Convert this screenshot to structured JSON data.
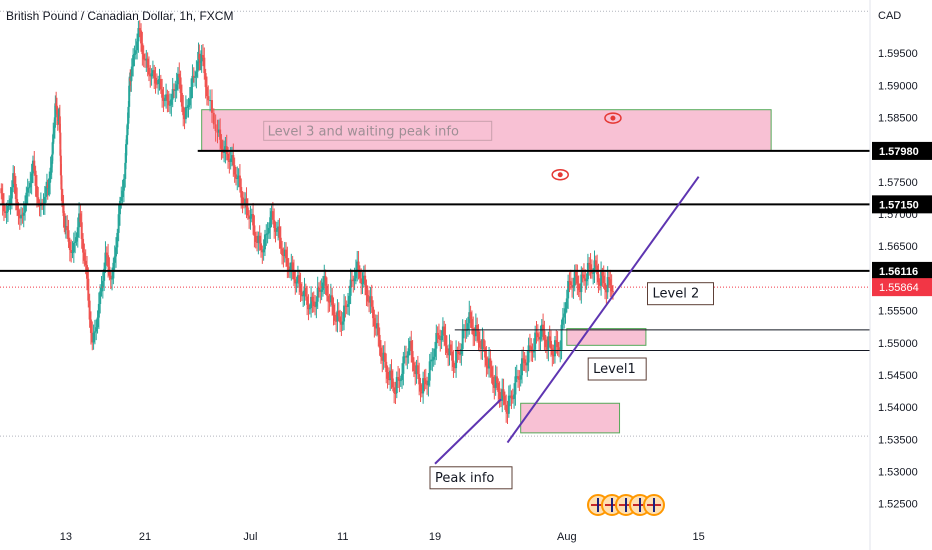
{
  "chart_data": {
    "type": "candlestick",
    "title": "British Pound / Canadian Dollar, 1h, FXCM",
    "currency": "CAD",
    "ylim": [
      1.522,
      1.602
    ],
    "y_ticks": [
      "1.59500",
      "1.59000",
      "1.58500",
      "1.57500",
      "1.57000",
      "1.56500",
      "1.55500",
      "1.55000",
      "1.54500",
      "1.54000",
      "1.53500",
      "1.53000",
      "1.52500"
    ],
    "y_tick_values": [
      1.595,
      1.59,
      1.585,
      1.575,
      1.57,
      1.565,
      1.555,
      1.55,
      1.545,
      1.54,
      1.535,
      1.53,
      1.525
    ],
    "x_ticks": [
      "13",
      "21",
      "Jul",
      "11",
      "19",
      "Aug",
      "15"
    ],
    "x_tick_positions": [
      0.0,
      6.0,
      14.0,
      21.0,
      28.0,
      38.0,
      48.0
    ],
    "last_bar_x": 38.0,
    "x_range": [
      -5.0,
      61.0
    ],
    "price_series": [
      [
        -5.0,
        1.574
      ],
      [
        -4.5,
        1.57
      ],
      [
        -4.0,
        1.576
      ],
      [
        -3.5,
        1.569
      ],
      [
        -3.0,
        1.573
      ],
      [
        -2.5,
        1.578
      ],
      [
        -2.0,
        1.571
      ],
      [
        -1.5,
        1.574
      ],
      [
        -1.2,
        1.576
      ],
      [
        -1.0,
        1.581
      ],
      [
        -0.8,
        1.587
      ],
      [
        -0.5,
        1.585
      ],
      [
        -0.3,
        1.572
      ],
      [
        0.0,
        1.568
      ],
      [
        0.5,
        1.564
      ],
      [
        1.0,
        1.57
      ],
      [
        1.5,
        1.562
      ],
      [
        2.0,
        1.55
      ],
      [
        2.5,
        1.556
      ],
      [
        3.0,
        1.564
      ],
      [
        3.5,
        1.56
      ],
      [
        4.0,
        1.57
      ],
      [
        4.5,
        1.578
      ],
      [
        4.8,
        1.59
      ],
      [
        5.0,
        1.593
      ],
      [
        5.5,
        1.599
      ],
      [
        6.0,
        1.594
      ],
      [
        6.5,
        1.592
      ],
      [
        7.0,
        1.591
      ],
      [
        7.5,
        1.588
      ],
      [
        8.0,
        1.588
      ],
      [
        8.5,
        1.592
      ],
      [
        9.0,
        1.585
      ],
      [
        9.5,
        1.59
      ],
      [
        10.0,
        1.594
      ],
      [
        10.3,
        1.595
      ],
      [
        10.8,
        1.588
      ],
      [
        11.5,
        1.583
      ],
      [
        12.0,
        1.58
      ],
      [
        12.5,
        1.579
      ],
      [
        13.0,
        1.576
      ],
      [
        13.5,
        1.572
      ],
      [
        14.0,
        1.57
      ],
      [
        14.5,
        1.566
      ],
      [
        15.0,
        1.565
      ],
      [
        15.5,
        1.57
      ],
      [
        16.0,
        1.568
      ],
      [
        16.5,
        1.564
      ],
      [
        17.0,
        1.562
      ],
      [
        17.5,
        1.56
      ],
      [
        18.0,
        1.558
      ],
      [
        18.5,
        1.556
      ],
      [
        19.0,
        1.557
      ],
      [
        19.5,
        1.56
      ],
      [
        20.0,
        1.557
      ],
      [
        20.5,
        1.554
      ],
      [
        21.0,
        1.554
      ],
      [
        21.5,
        1.558
      ],
      [
        22.0,
        1.562
      ],
      [
        22.5,
        1.56
      ],
      [
        23.0,
        1.557
      ],
      [
        23.5,
        1.553
      ],
      [
        24.0,
        1.548
      ],
      [
        24.5,
        1.545
      ],
      [
        25.0,
        1.543
      ],
      [
        25.5,
        1.546
      ],
      [
        26.0,
        1.55
      ],
      [
        26.5,
        1.546
      ],
      [
        27.0,
        1.543
      ],
      [
        27.5,
        1.545
      ],
      [
        28.0,
        1.55
      ],
      [
        28.5,
        1.552
      ],
      [
        29.0,
        1.549
      ],
      [
        29.5,
        1.547
      ],
      [
        30.0,
        1.55
      ],
      [
        30.5,
        1.554
      ],
      [
        31.0,
        1.552
      ],
      [
        31.5,
        1.55
      ],
      [
        32.0,
        1.547
      ],
      [
        32.5,
        1.544
      ],
      [
        33.0,
        1.542
      ],
      [
        33.5,
        1.54
      ],
      [
        34.0,
        1.543
      ],
      [
        34.5,
        1.546
      ],
      [
        35.0,
        1.548
      ],
      [
        35.5,
        1.55
      ],
      [
        36.0,
        1.552
      ],
      [
        36.5,
        1.55
      ],
      [
        37.0,
        1.549
      ],
      [
        37.5,
        1.55
      ],
      [
        38.0,
        1.558
      ],
      [
        38.5,
        1.56
      ],
      [
        39.0,
        1.559
      ],
      [
        39.5,
        1.561
      ],
      [
        40.0,
        1.562
      ],
      [
        40.5,
        1.56
      ],
      [
        41.0,
        1.559
      ],
      [
        41.5,
        1.559
      ]
    ],
    "horizontal_levels": [
      {
        "label": "1.57980",
        "value": 1.5798
      },
      {
        "label": "1.57150",
        "value": 1.5715
      },
      {
        "label": "1.56116",
        "value": 1.56116
      }
    ],
    "current_price": {
      "label": "1.55864",
      "value": 1.55864,
      "color": "#f23645"
    },
    "support_lines": [
      1.552,
      1.5488
    ],
    "dotted_lines": [
      1.6015,
      1.5355
    ],
    "zones": [
      {
        "label": "Level 3 and waiting peak info",
        "x0": 10.3,
        "x1": 53.5,
        "y0": 1.5798,
        "y1": 1.5862
      },
      {
        "label": "",
        "x0": 38.0,
        "x1": 44.0,
        "y0": 1.5496,
        "y1": 1.5522
      },
      {
        "label": "",
        "x0": 34.5,
        "x1": 42.0,
        "y0": 1.536,
        "y1": 1.5406
      }
    ],
    "trendlines": [
      {
        "x0": 33.5,
        "y0": 1.5345,
        "x1": 48.0,
        "y1": 1.5758
      },
      {
        "x0": 28.0,
        "y0": 1.5312,
        "x1": 33.0,
        "y1": 1.5412
      }
    ],
    "annotations": [
      {
        "text": "Level 2",
        "x": 44.5,
        "y": 1.557
      },
      {
        "text": "Level1",
        "x": 40.0,
        "y": 1.5453
      },
      {
        "text": "Peak info",
        "x": 28.0,
        "y": 1.5284
      }
    ],
    "eye_markers": [
      {
        "x": 41.5,
        "y": 1.5849
      },
      {
        "x": 37.5,
        "y": 1.5761
      }
    ],
    "colors": {
      "up": "#26a69a",
      "down": "#ef5350",
      "zone_fill": "#f8bbd0",
      "zone_border": "#43a047",
      "trend": "#5e35b1",
      "eye": "#e53935"
    }
  }
}
